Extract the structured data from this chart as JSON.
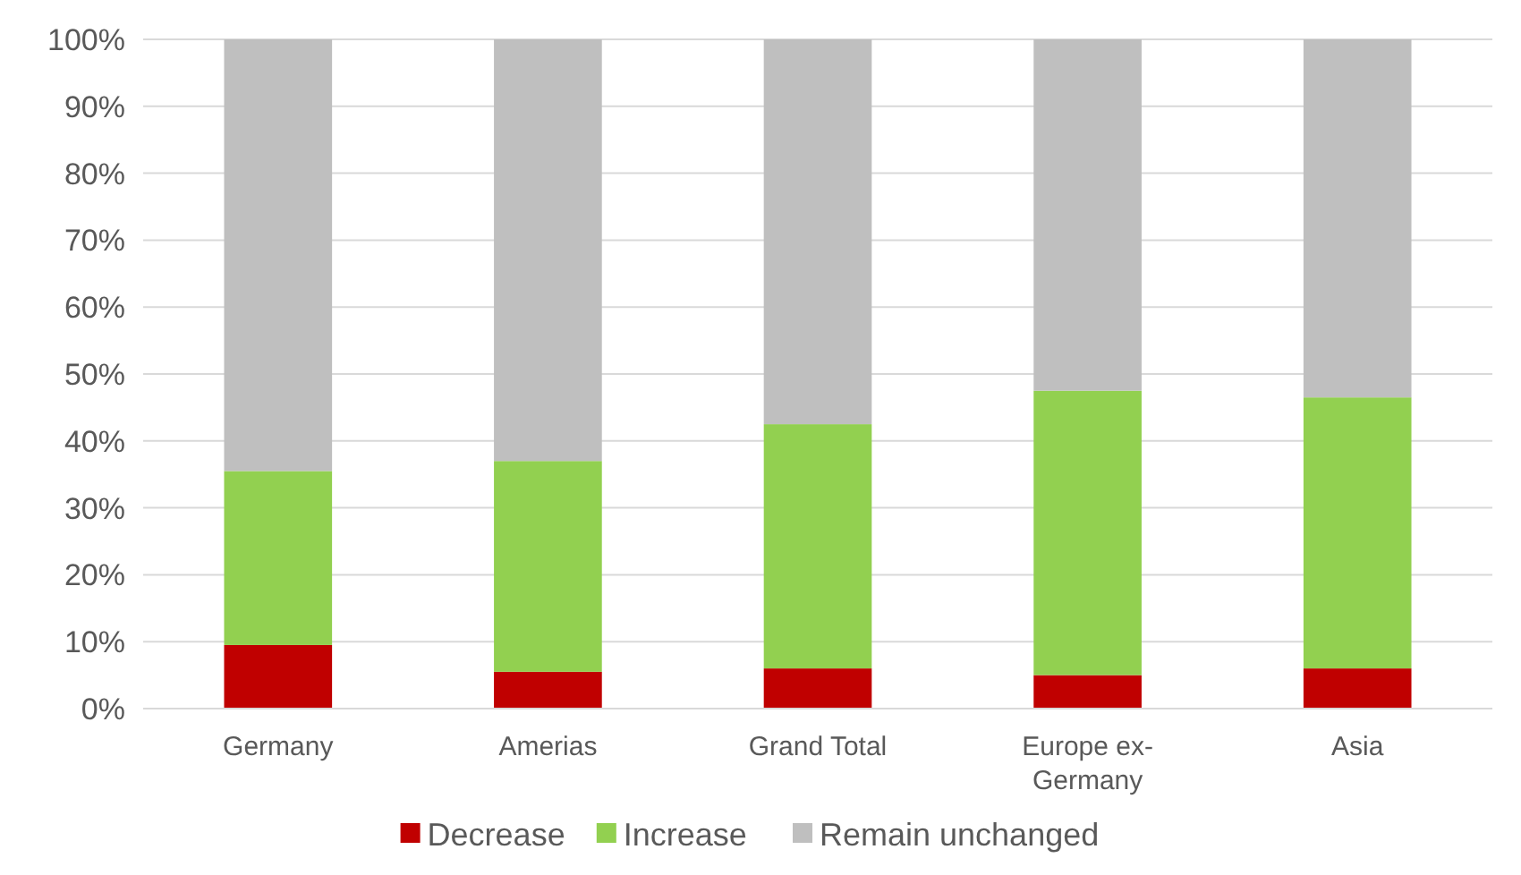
{
  "chart_data": {
    "type": "bar",
    "stacked": true,
    "categories": [
      "Germany",
      "Amerias",
      "Grand Total",
      "Europe ex-Germany",
      "Asia"
    ],
    "series": [
      {
        "name": "Decrease",
        "color": "#c00000",
        "values": [
          9.5,
          5.5,
          6,
          5,
          6
        ]
      },
      {
        "name": "Increase",
        "color": "#92d050",
        "values": [
          26,
          31.5,
          36.5,
          42.5,
          40.5
        ]
      },
      {
        "name": "Remain unchanged",
        "color": "#bfbfbf",
        "values": [
          64.5,
          63,
          57.5,
          52.5,
          53.5
        ]
      }
    ],
    "ylim": [
      0,
      100
    ],
    "yticks": [
      {
        "value": 0,
        "label": "0%"
      },
      {
        "value": 10,
        "label": "10%"
      },
      {
        "value": 20,
        "label": "20%"
      },
      {
        "value": 30,
        "label": "30%"
      },
      {
        "value": 40,
        "label": "40%"
      },
      {
        "value": 50,
        "label": "50%"
      },
      {
        "value": 60,
        "label": "60%"
      },
      {
        "value": 70,
        "label": "70%"
      },
      {
        "value": 80,
        "label": "80%"
      },
      {
        "value": 90,
        "label": "90%"
      },
      {
        "value": 100,
        "label": "100%"
      }
    ],
    "grid": "y",
    "legend": "bottom"
  }
}
